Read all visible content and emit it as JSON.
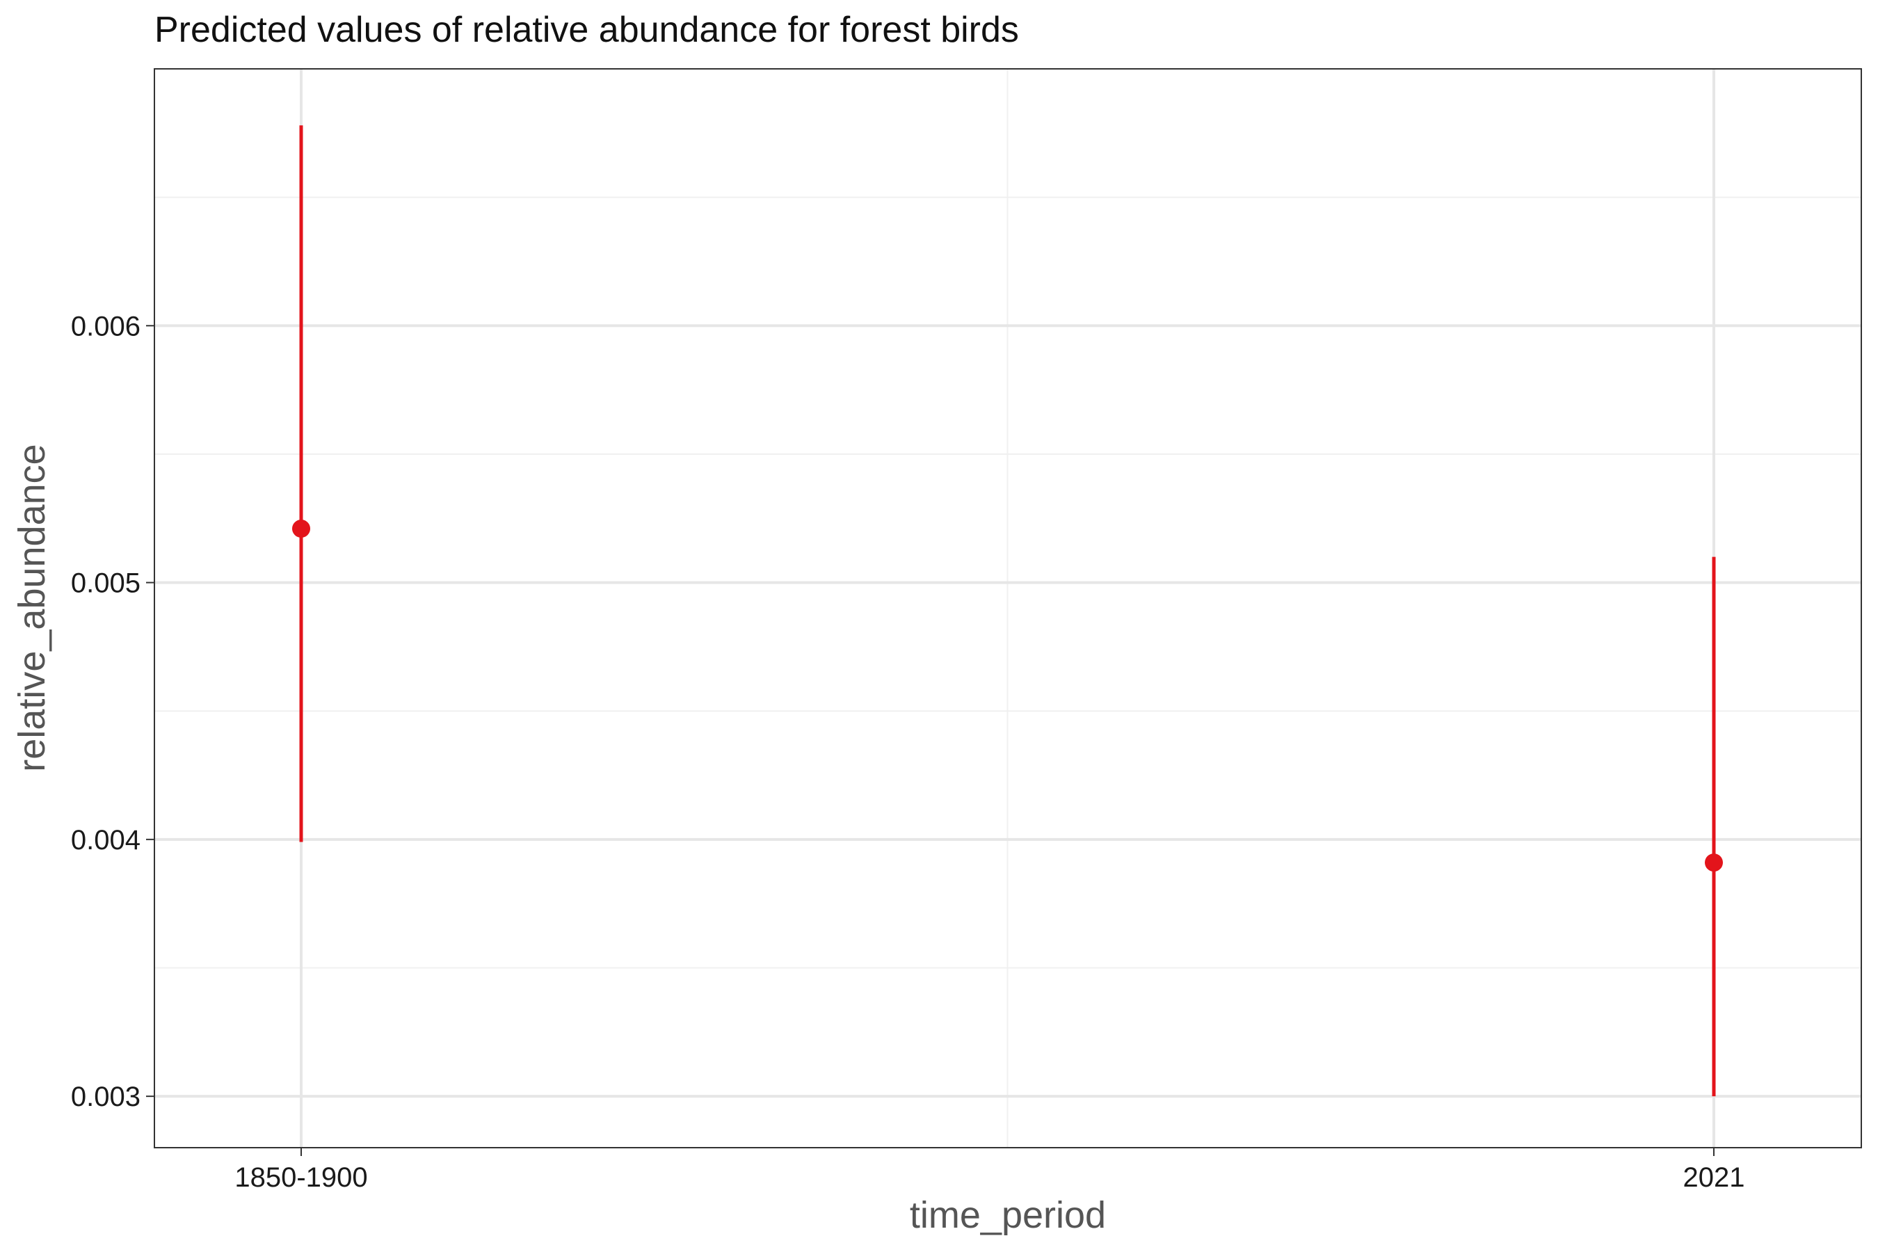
{
  "chart_data": {
    "type": "scatter",
    "title": "Predicted values of relative abundance for forest birds",
    "xlabel": "time_period",
    "ylabel": "relative_abundance",
    "categories": [
      "1850-1900",
      "2021"
    ],
    "series": [
      {
        "name": "relative_abundance",
        "color": "#e3141b",
        "points": [
          {
            "x": "1850-1900",
            "y": 0.00521,
            "ymin": 0.00399,
            "ymax": 0.00678
          },
          {
            "x": "2021",
            "y": 0.00391,
            "ymin": 0.003,
            "ymax": 0.0051
          }
        ]
      }
    ],
    "ylim": [
      0.0028,
      0.007
    ],
    "y_ticks": [
      0.003,
      0.004,
      0.005,
      0.006
    ],
    "y_tick_labels": [
      "0.003",
      "0.004",
      "0.005",
      "0.006"
    ],
    "grid": true,
    "legend": "none"
  }
}
